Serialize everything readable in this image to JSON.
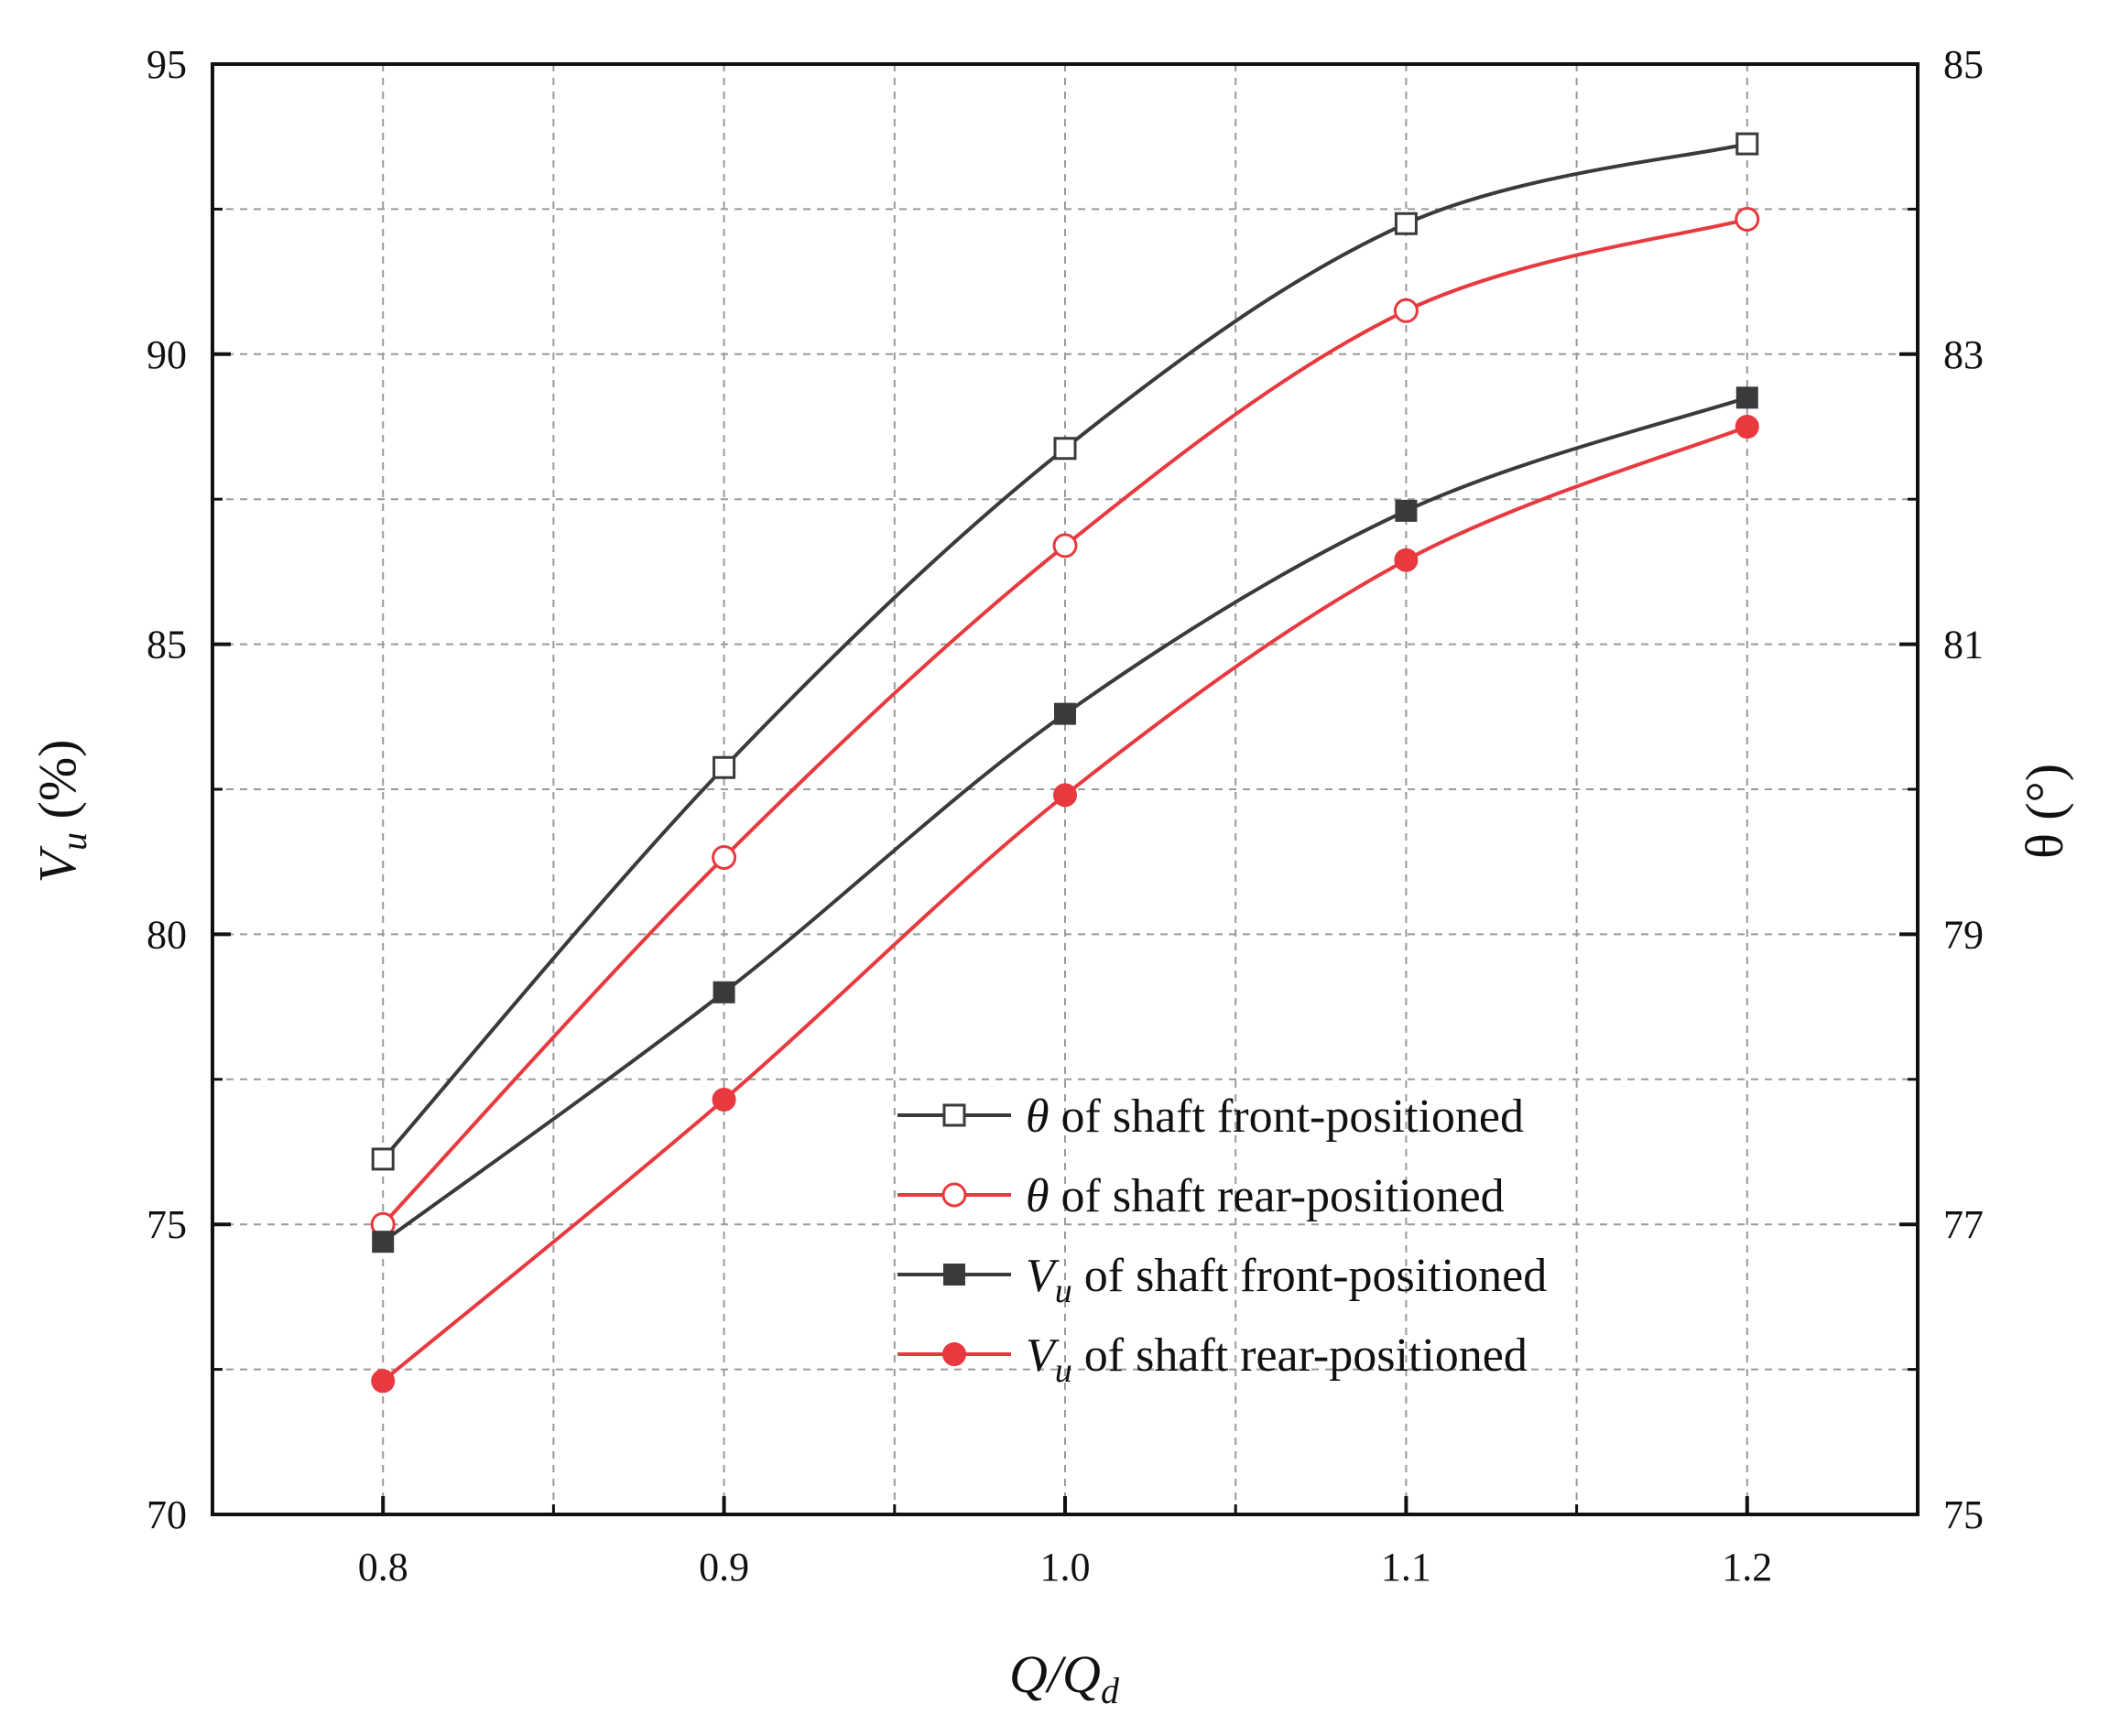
{
  "chart_data": {
    "type": "line",
    "x": [
      0.8,
      0.9,
      1.0,
      1.1,
      1.2
    ],
    "x_tick_labels": [
      "0.8",
      "0.9",
      "1.0",
      "1.1",
      "1.2"
    ],
    "xlim": [
      0.75,
      1.25
    ],
    "xlabel": {
      "main": "Q/Q",
      "sub": "d"
    },
    "y_left": {
      "ylim": [
        70,
        95
      ],
      "ticks": [
        70,
        75,
        80,
        85,
        90,
        95
      ],
      "tick_labels": [
        "70",
        "75",
        "80",
        "85",
        "90",
        "95"
      ],
      "label": {
        "main": "V",
        "sub": "u",
        "rest": " (%)"
      }
    },
    "y_right": {
      "ylim": [
        75,
        85
      ],
      "ticks": [
        75,
        77,
        79,
        81,
        83,
        85
      ],
      "tick_labels": [
        "75",
        "77",
        "79",
        "81",
        "83",
        "85"
      ],
      "label": "θ (°)"
    },
    "grid": true,
    "legend_position": "bottom-right",
    "series": [
      {
        "name": "θ of  shaft front-positioned",
        "legend_symbol": "θ",
        "legend_sub": "",
        "legend_rest": " of  shaft front-positioned",
        "axis": "right",
        "color": "#3a3a3a",
        "marker": "square-open",
        "values": [
          77.45,
          80.15,
          82.35,
          83.9,
          84.45
        ]
      },
      {
        "name": "θ of  shaft rear-positioned",
        "legend_symbol": "θ",
        "legend_sub": "",
        "legend_rest": " of  shaft rear-positioned",
        "axis": "right",
        "color": "#e8393f",
        "marker": "circle-open",
        "values": [
          77.0,
          79.53,
          81.68,
          83.3,
          83.93
        ]
      },
      {
        "name": "Vu of  shaft front-positioned",
        "legend_symbol": "V",
        "legend_sub": "u",
        "legend_rest": " of  shaft front-positioned",
        "axis": "left",
        "color": "#3a3a3a",
        "marker": "square-filled",
        "values": [
          74.7,
          79.0,
          83.8,
          87.3,
          89.25
        ]
      },
      {
        "name": "Vu of  shaft rear-positioned",
        "legend_symbol": "V",
        "legend_sub": "u",
        "legend_rest": " of  shaft rear-positioned",
        "axis": "left",
        "color": "#e8393f",
        "marker": "circle-filled",
        "values": [
          72.3,
          77.15,
          82.4,
          86.45,
          88.75
        ]
      }
    ]
  }
}
